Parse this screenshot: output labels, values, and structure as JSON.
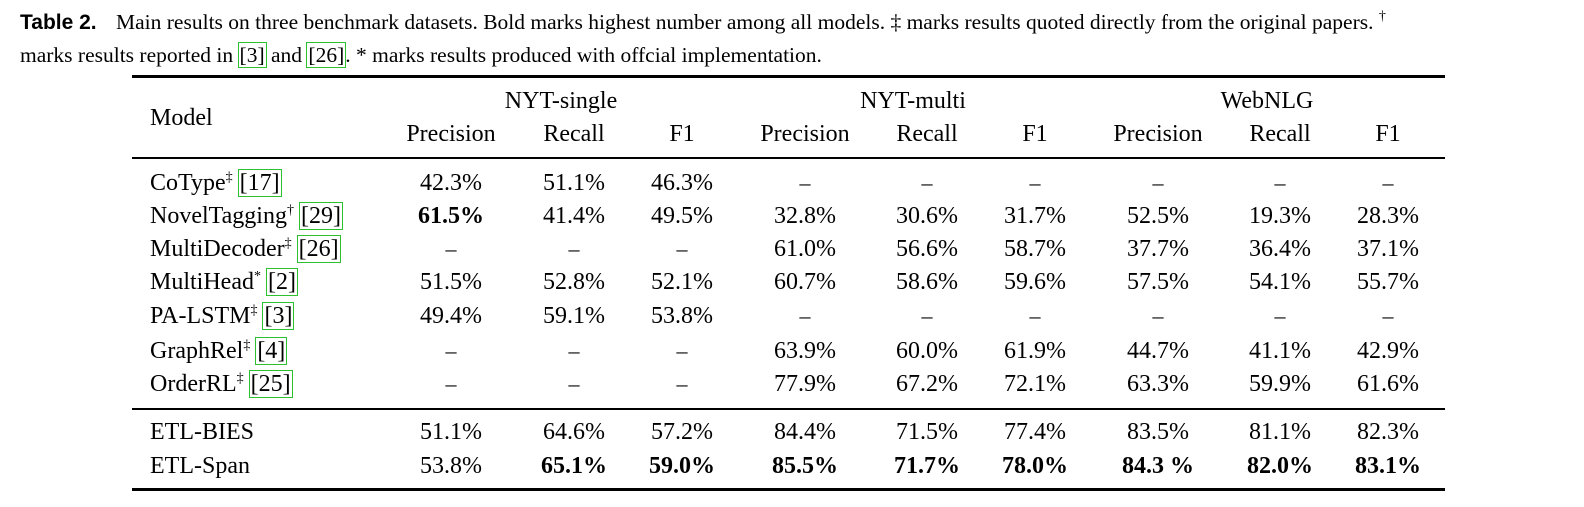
{
  "caption": {
    "label": "Table 2.",
    "text1": "Main results on three benchmark datasets. Bold marks highest number among all models.",
    "ddag": "‡",
    "text2": "marks results quoted directly from the original papers.",
    "dag": "†",
    "text3": "marks results reported in",
    "ref_a": "[3]",
    "and": "and",
    "ref_b": "[26]",
    "text4": ".",
    "star": "*",
    "text5": "marks results produced with offcial implementation."
  },
  "table": {
    "model_header": "Model",
    "groups": [
      "NYT-single",
      "NYT-multi",
      "WebNLG"
    ],
    "subheaders": [
      "Precision",
      "Recall",
      "F1",
      "Precision",
      "Recall",
      "F1",
      "Precision",
      "Recall",
      "F1"
    ],
    "rows": [
      {
        "name": "CoType",
        "mark": "‡",
        "ref": "[17]",
        "cells": [
          "42.3%",
          "51.1%",
          "46.3%",
          "–",
          "–",
          "–",
          "–",
          "–",
          "–"
        ],
        "bold": []
      },
      {
        "name": "NovelTagging",
        "mark": "†",
        "ref": "[29]",
        "cells": [
          "61.5%",
          "41.4%",
          "49.5%",
          "32.8%",
          "30.6%",
          "31.7%",
          "52.5%",
          "19.3%",
          "28.3%"
        ],
        "bold": [
          0
        ]
      },
      {
        "name": "MultiDecoder",
        "mark": "‡",
        "ref": "[26]",
        "cells": [
          "–",
          "–",
          "–",
          "61.0%",
          "56.6%",
          "58.7%",
          "37.7%",
          "36.4%",
          "37.1%"
        ],
        "bold": []
      },
      {
        "name": "MultiHead",
        "mark": "*",
        "ref": "[2]",
        "cells": [
          "51.5%",
          "52.8%",
          "52.1%",
          "60.7%",
          "58.6%",
          "59.6%",
          "57.5%",
          "54.1%",
          "55.7%"
        ],
        "bold": []
      },
      {
        "name": "PA-LSTM",
        "mark": "‡",
        "ref": "[3]",
        "cells": [
          "49.4%",
          "59.1%",
          "53.8%",
          "–",
          "–",
          "–",
          "–",
          "–",
          "–"
        ],
        "bold": []
      },
      {
        "name": "GraphRel",
        "mark": "‡",
        "ref": "[4]",
        "cells": [
          "–",
          "–",
          "–",
          "63.9%",
          "60.0%",
          "61.9%",
          "44.7%",
          "41.1%",
          "42.9%"
        ],
        "bold": []
      },
      {
        "name": "OrderRL",
        "mark": "‡",
        "ref": "[25]",
        "cells": [
          "–",
          "–",
          "–",
          "77.9%",
          "67.2%",
          "72.1%",
          "63.3%",
          "59.9%",
          "61.6%"
        ],
        "bold": []
      },
      {
        "name": "ETL-BIES",
        "mark": "",
        "ref": "",
        "cells": [
          "51.1%",
          "64.6%",
          "57.2%",
          "84.4%",
          "71.5%",
          "77.4%",
          "83.5%",
          "81.1%",
          "82.3%"
        ],
        "bold": []
      },
      {
        "name": "ETL-Span",
        "mark": "",
        "ref": "",
        "cells": [
          "53.8%",
          "65.1%",
          "59.0%",
          "85.5%",
          "71.7%",
          "78.0%",
          "84.3 %",
          "82.0%",
          "83.1%"
        ],
        "bold": [
          1,
          2,
          3,
          4,
          5,
          6,
          7,
          8
        ]
      }
    ]
  }
}
